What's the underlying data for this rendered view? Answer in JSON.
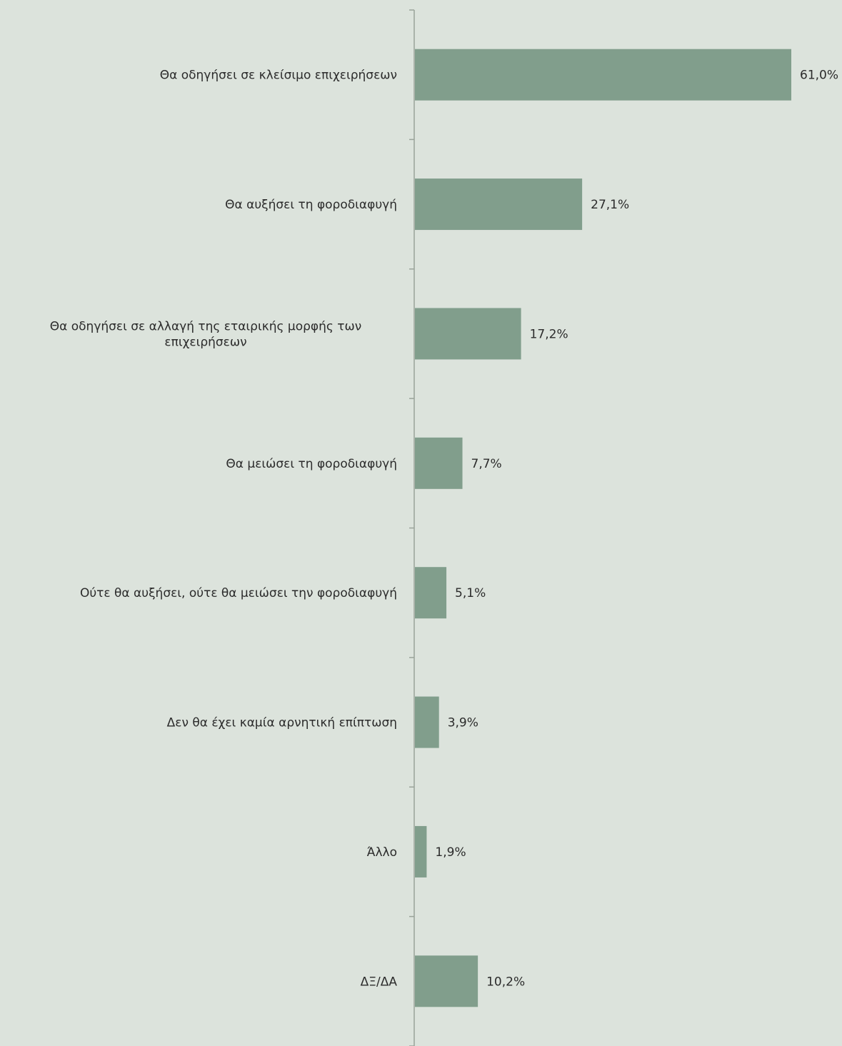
{
  "colors": {
    "background": "#dce3dc",
    "bar": "#819e8c",
    "axis": "#9aa39a",
    "text": "#2b2b2b"
  },
  "chart_data": {
    "type": "bar",
    "orientation": "horizontal",
    "categories": [
      "Θα οδηγήσει σε κλείσιμο επιχειρήσεων",
      "Θα αυξήσει τη φοροδιαφυγή",
      "Θα οδηγήσει σε αλλαγή  της εταιρικής μορφής των επιχειρήσεων",
      "Θα  μειώσει τη φοροδιαφυγή",
      "Ούτε θα αυξήσει, ούτε θα μειώσει την φοροδιαφυγή",
      "Δεν θα έχει καμία αρνητική επίπτωση",
      "Άλλο",
      "ΔΞ/ΔΑ"
    ],
    "category_lines": [
      [
        "Θα οδηγήσει σε κλείσιμο επιχειρήσεων"
      ],
      [
        "Θα αυξήσει τη φοροδιαφυγή"
      ],
      [
        "Θα οδηγήσει σε αλλαγή  της εταιρικής μορφής των",
        "επιχειρήσεων"
      ],
      [
        "Θα  μειώσει τη φοροδιαφυγή"
      ],
      [
        "Ούτε θα αυξήσει, ούτε θα μειώσει την φοροδιαφυγή"
      ],
      [
        "Δεν θα έχει καμία αρνητική επίπτωση"
      ],
      [
        "Άλλο"
      ],
      [
        "ΔΞ/ΔΑ"
      ]
    ],
    "values": [
      61.0,
      27.1,
      17.2,
      7.7,
      5.1,
      3.9,
      1.9,
      10.2
    ],
    "value_labels": [
      "61,0%",
      "27,1%",
      "17,2%",
      "7,7%",
      "5,1%",
      "3,9%",
      "1,9%",
      "10,2%"
    ],
    "xlim": [
      0,
      61
    ],
    "grid": false,
    "legend": "none"
  }
}
